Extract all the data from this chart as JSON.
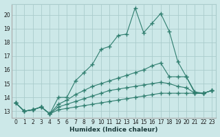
{
  "x_values": [
    0,
    1,
    2,
    3,
    4,
    5,
    6,
    7,
    8,
    9,
    10,
    11,
    12,
    13,
    14,
    15,
    16,
    17,
    18,
    19,
    20,
    21,
    22,
    23
  ],
  "line1": [
    13.6,
    13.0,
    13.1,
    13.3,
    12.8,
    14.0,
    14.0,
    15.2,
    15.8,
    16.4,
    17.5,
    17.7,
    18.5,
    18.6,
    20.5,
    18.7,
    19.4,
    20.1,
    18.8,
    16.6,
    15.5,
    14.4,
    14.3,
    14.5
  ],
  "line2": [
    13.6,
    13.0,
    13.1,
    13.3,
    12.8,
    13.5,
    13.8,
    14.2,
    14.5,
    14.8,
    15.0,
    15.2,
    15.4,
    15.6,
    15.8,
    16.0,
    16.3,
    16.5,
    15.5,
    15.5,
    15.5,
    14.3,
    14.3,
    14.5
  ],
  "line3": [
    13.6,
    13.0,
    13.1,
    13.3,
    12.8,
    13.3,
    13.5,
    13.7,
    13.9,
    14.1,
    14.3,
    14.5,
    14.6,
    14.7,
    14.8,
    14.9,
    15.0,
    15.1,
    15.0,
    14.8,
    14.7,
    14.3,
    14.3,
    14.5
  ],
  "line4": [
    13.6,
    13.0,
    13.1,
    13.3,
    12.8,
    13.1,
    13.2,
    13.3,
    13.4,
    13.5,
    13.6,
    13.7,
    13.8,
    13.9,
    14.0,
    14.1,
    14.2,
    14.3,
    14.3,
    14.3,
    14.3,
    14.3,
    14.3,
    14.5
  ],
  "line_color": "#2e7d6e",
  "bg_color": "#cce8e8",
  "grid_color": "#aacccc",
  "xlabel": "Humidex (Indice chaleur)",
  "ylim": [
    12.5,
    20.8
  ],
  "xlim": [
    -0.5,
    23.5
  ],
  "yticks": [
    13,
    14,
    15,
    16,
    17,
    18,
    19,
    20
  ],
  "xticks": [
    0,
    1,
    2,
    3,
    4,
    5,
    6,
    7,
    8,
    9,
    10,
    11,
    12,
    13,
    14,
    15,
    16,
    17,
    18,
    19,
    20,
    21,
    22,
    23
  ]
}
